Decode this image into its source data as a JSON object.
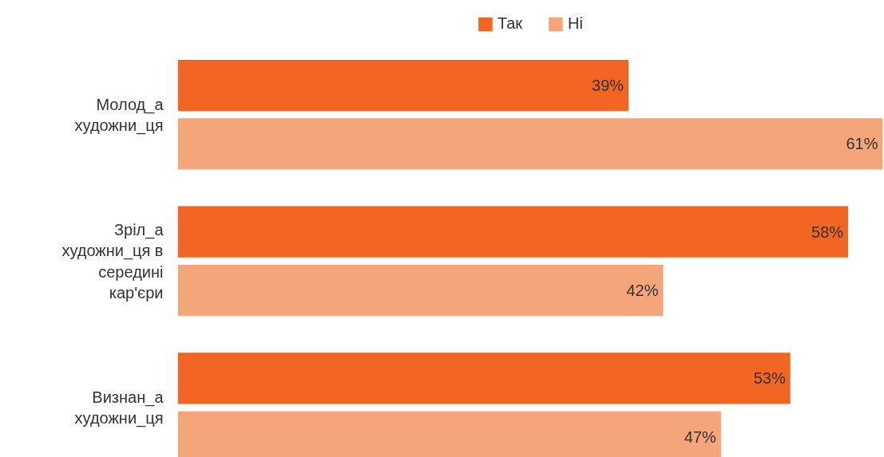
{
  "chart_data": {
    "type": "bar",
    "orientation": "horizontal",
    "categories": [
      "Молод_а художни_ця",
      "Зріл_а художни_ця в середині кар'єри",
      "Визнан_а художни_ця"
    ],
    "series": [
      {
        "name": "Так",
        "color": "#f26522",
        "values": [
          39,
          58,
          53
        ],
        "value_labels": [
          "39%",
          "58%",
          "53%"
        ]
      },
      {
        "name": "Ні",
        "color": "#f4a67a",
        "values": [
          61,
          42,
          47
        ],
        "value_labels": [
          "61%",
          "42%",
          "47%"
        ]
      }
    ],
    "tick_labels": "y",
    "legend": "top"
  }
}
